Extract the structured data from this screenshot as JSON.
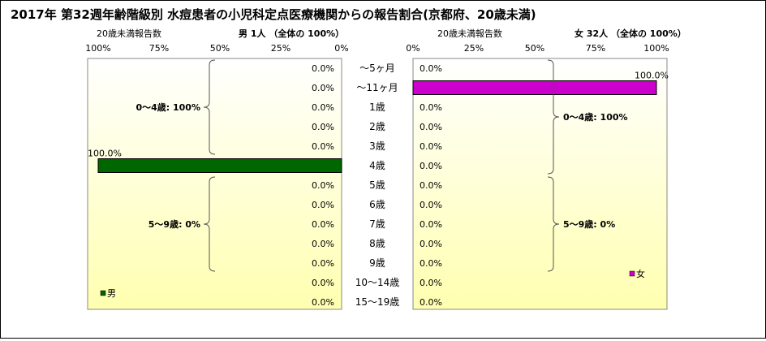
{
  "title": "2017年 第32週年齢階級別 水痘患者の小児科定点医療機関からの報告割合(京都府、20歳未満)",
  "colors": {
    "male_bar": "#006600",
    "female_bar": "#CC00CC",
    "plot_top": "#FFFFFF",
    "plot_bottom": "#FFFFB0"
  },
  "chart_data": [
    {
      "type": "bar",
      "orientation": "horizontal",
      "direction": "right-to-left",
      "sublabel": "20歳未満報告数",
      "header": "男  1人  （全体の  100%）",
      "xlim": [
        0,
        100
      ],
      "xticks": [
        "0%",
        "25%",
        "50%",
        "75%",
        "100%"
      ],
      "categories": [
        "～5ヶ月",
        "～11ヶ月",
        "1歳",
        "2歳",
        "3歳",
        "4歳",
        "5歳",
        "6歳",
        "7歳",
        "8歳",
        "9歳",
        "10～14歳",
        "15～19歳"
      ],
      "series": [
        {
          "name": "男",
          "values": [
            0,
            0,
            0,
            0,
            0,
            100,
            0,
            0,
            0,
            0,
            0,
            0,
            0
          ],
          "labels": [
            "0.0%",
            "0.0%",
            "0.0%",
            "0.0%",
            "0.0%",
            "100.0%",
            "0.0%",
            "0.0%",
            "0.0%",
            "0.0%",
            "0.0%",
            "0.0%",
            "0.0%"
          ]
        }
      ],
      "annotations": [
        {
          "text": "0～4歳: 100%",
          "from": 0,
          "to": 4
        },
        {
          "text": "5～9歳: 0%",
          "from": 6,
          "to": 10
        }
      ],
      "legend": "bottom-left"
    },
    {
      "type": "bar",
      "orientation": "horizontal",
      "direction": "left-to-right",
      "sublabel": "20歳未満報告数",
      "header": "女  32人  （全体の  100%）",
      "xlim": [
        0,
        100
      ],
      "xticks": [
        "0%",
        "25%",
        "50%",
        "75%",
        "100%"
      ],
      "categories": [
        "～5ヶ月",
        "～11ヶ月",
        "1歳",
        "2歳",
        "3歳",
        "4歳",
        "5歳",
        "6歳",
        "7歳",
        "8歳",
        "9歳",
        "10～14歳",
        "15～19歳"
      ],
      "series": [
        {
          "name": "女",
          "values": [
            0,
            100,
            0,
            0,
            0,
            0,
            0,
            0,
            0,
            0,
            0,
            0,
            0
          ],
          "labels": [
            "0.0%",
            "100.0%",
            "0.0%",
            "0.0%",
            "0.0%",
            "0.0%",
            "0.0%",
            "0.0%",
            "0.0%",
            "0.0%",
            "0.0%",
            "0.0%",
            "0.0%"
          ]
        }
      ],
      "annotations": [
        {
          "text": "0～4歳: 100%",
          "from": 0,
          "to": 5
        },
        {
          "text": "5～9歳: 0%",
          "from": 6,
          "to": 10
        }
      ],
      "legend": "bottom-right"
    }
  ]
}
